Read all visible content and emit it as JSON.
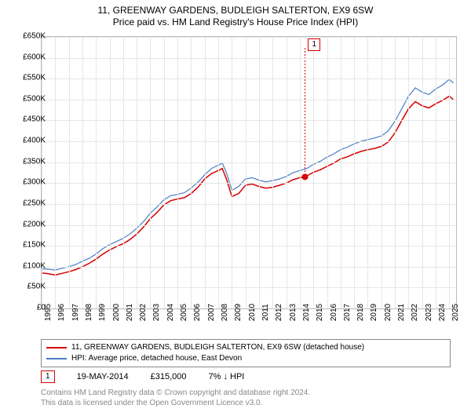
{
  "title": {
    "line1": "11, GREENWAY GARDENS, BUDLEIGH SALTERTON, EX9 6SW",
    "line2": "Price paid vs. HM Land Registry's House Price Index (HPI)"
  },
  "chart": {
    "type": "line",
    "background_color": "#ffffff",
    "grid_color": "#e6e6e6",
    "border_color": "#bbbbbb",
    "y": {
      "min": 0,
      "max": 650000,
      "tick_step": 50000,
      "ticks": [
        "£0",
        "£50K",
        "£100K",
        "£150K",
        "£200K",
        "£250K",
        "£300K",
        "£350K",
        "£400K",
        "£450K",
        "£500K",
        "£550K",
        "£600K",
        "£650K"
      ],
      "label_fontsize": 10,
      "label_color": "#000000"
    },
    "x": {
      "min": 1995,
      "max": 2025.5,
      "ticks": [
        1995,
        1996,
        1997,
        1998,
        1999,
        2000,
        2001,
        2002,
        2003,
        2004,
        2005,
        2006,
        2007,
        2008,
        2009,
        2010,
        2011,
        2012,
        2013,
        2014,
        2015,
        2016,
        2017,
        2018,
        2019,
        2020,
        2021,
        2022,
        2023,
        2024,
        2025
      ],
      "label_fontsize": 10,
      "label_color": "#000000"
    },
    "series": [
      {
        "name": "11, GREENWAY GARDENS, BUDLEIGH SALTERTON, EX9 6SW (detached house)",
        "color": "#d40000",
        "line_width": 1.5,
        "points": [
          [
            1995,
            85000
          ],
          [
            1995.5,
            83000
          ],
          [
            1996,
            80000
          ],
          [
            1996.5,
            84000
          ],
          [
            1997,
            88000
          ],
          [
            1997.5,
            93000
          ],
          [
            1998,
            100000
          ],
          [
            1998.5,
            108000
          ],
          [
            1999,
            118000
          ],
          [
            1999.5,
            130000
          ],
          [
            2000,
            140000
          ],
          [
            2000.5,
            148000
          ],
          [
            2001,
            155000
          ],
          [
            2001.5,
            165000
          ],
          [
            2002,
            178000
          ],
          [
            2002.5,
            195000
          ],
          [
            2003,
            215000
          ],
          [
            2003.5,
            230000
          ],
          [
            2004,
            248000
          ],
          [
            2004.5,
            258000
          ],
          [
            2005,
            262000
          ],
          [
            2005.5,
            265000
          ],
          [
            2006,
            275000
          ],
          [
            2006.5,
            290000
          ],
          [
            2007,
            310000
          ],
          [
            2007.5,
            323000
          ],
          [
            2008,
            330000
          ],
          [
            2008.3,
            335000
          ],
          [
            2008.6,
            310000
          ],
          [
            2009,
            268000
          ],
          [
            2009.5,
            275000
          ],
          [
            2010,
            295000
          ],
          [
            2010.5,
            298000
          ],
          [
            2011,
            292000
          ],
          [
            2011.5,
            288000
          ],
          [
            2012,
            290000
          ],
          [
            2012.5,
            295000
          ],
          [
            2013,
            300000
          ],
          [
            2013.5,
            308000
          ],
          [
            2014,
            313000
          ],
          [
            2014.38,
            315000
          ],
          [
            2014.5,
            317000
          ],
          [
            2015,
            326000
          ],
          [
            2015.5,
            332000
          ],
          [
            2016,
            340000
          ],
          [
            2016.5,
            348000
          ],
          [
            2017,
            358000
          ],
          [
            2017.5,
            363000
          ],
          [
            2018,
            370000
          ],
          [
            2018.5,
            376000
          ],
          [
            2019,
            380000
          ],
          [
            2019.5,
            383000
          ],
          [
            2020,
            388000
          ],
          [
            2020.5,
            398000
          ],
          [
            2021,
            420000
          ],
          [
            2021.5,
            450000
          ],
          [
            2022,
            478000
          ],
          [
            2022.5,
            495000
          ],
          [
            2023,
            485000
          ],
          [
            2023.5,
            480000
          ],
          [
            2024,
            490000
          ],
          [
            2024.5,
            498000
          ],
          [
            2025,
            508000
          ],
          [
            2025.3,
            500000
          ]
        ]
      },
      {
        "name": "HPI: Average price, detached house, East Devon",
        "color": "#4a7cc4",
        "line_width": 1.2,
        "points": [
          [
            1995,
            95000
          ],
          [
            1995.5,
            94000
          ],
          [
            1996,
            92000
          ],
          [
            1996.5,
            96000
          ],
          [
            1997,
            100000
          ],
          [
            1997.5,
            105000
          ],
          [
            1998,
            113000
          ],
          [
            1998.5,
            120000
          ],
          [
            1999,
            130000
          ],
          [
            1999.5,
            143000
          ],
          [
            2000,
            153000
          ],
          [
            2000.5,
            160000
          ],
          [
            2001,
            168000
          ],
          [
            2001.5,
            178000
          ],
          [
            2002,
            192000
          ],
          [
            2002.5,
            208000
          ],
          [
            2003,
            228000
          ],
          [
            2003.5,
            243000
          ],
          [
            2004,
            260000
          ],
          [
            2004.5,
            270000
          ],
          [
            2005,
            273000
          ],
          [
            2005.5,
            277000
          ],
          [
            2006,
            288000
          ],
          [
            2006.5,
            302000
          ],
          [
            2007,
            320000
          ],
          [
            2007.5,
            335000
          ],
          [
            2008,
            343000
          ],
          [
            2008.3,
            348000
          ],
          [
            2008.6,
            325000
          ],
          [
            2009,
            283000
          ],
          [
            2009.5,
            292000
          ],
          [
            2010,
            310000
          ],
          [
            2010.5,
            313000
          ],
          [
            2011,
            307000
          ],
          [
            2011.5,
            303000
          ],
          [
            2012,
            306000
          ],
          [
            2012.5,
            310000
          ],
          [
            2013,
            316000
          ],
          [
            2013.5,
            325000
          ],
          [
            2014,
            330000
          ],
          [
            2014.5,
            335000
          ],
          [
            2015,
            345000
          ],
          [
            2015.5,
            352000
          ],
          [
            2016,
            362000
          ],
          [
            2016.5,
            370000
          ],
          [
            2017,
            380000
          ],
          [
            2017.5,
            386000
          ],
          [
            2018,
            394000
          ],
          [
            2018.5,
            400000
          ],
          [
            2019,
            404000
          ],
          [
            2019.5,
            408000
          ],
          [
            2020,
            413000
          ],
          [
            2020.5,
            425000
          ],
          [
            2021,
            448000
          ],
          [
            2021.5,
            478000
          ],
          [
            2022,
            508000
          ],
          [
            2022.5,
            528000
          ],
          [
            2023,
            518000
          ],
          [
            2023.5,
            512000
          ],
          [
            2024,
            525000
          ],
          [
            2024.5,
            535000
          ],
          [
            2025,
            548000
          ],
          [
            2025.3,
            540000
          ]
        ]
      }
    ],
    "markers": [
      {
        "id": "1",
        "x": 2014.38,
        "y": 315000,
        "shape": "circle",
        "color": "#d40000",
        "radius": 4,
        "callout_border": "#d40000"
      }
    ]
  },
  "legend": {
    "border_color": "#888888",
    "fontsize": 10,
    "items": [
      {
        "color": "#d40000",
        "label": "11, GREENWAY GARDENS, BUDLEIGH SALTERTON, EX9 6SW (detached house)"
      },
      {
        "color": "#4a7cc4",
        "label": "HPI: Average price, detached house, East Devon"
      }
    ]
  },
  "info_row": {
    "badge": {
      "text": "1",
      "border_color": "#d40000"
    },
    "date": "19-MAY-2014",
    "price": "£315,000",
    "delta": "7% ↓ HPI"
  },
  "footer": {
    "line1": "Contains HM Land Registry data © Crown copyright and database right 2024.",
    "line2": "This data is licensed under the Open Government Licence v3.0.",
    "color": "#888888"
  }
}
